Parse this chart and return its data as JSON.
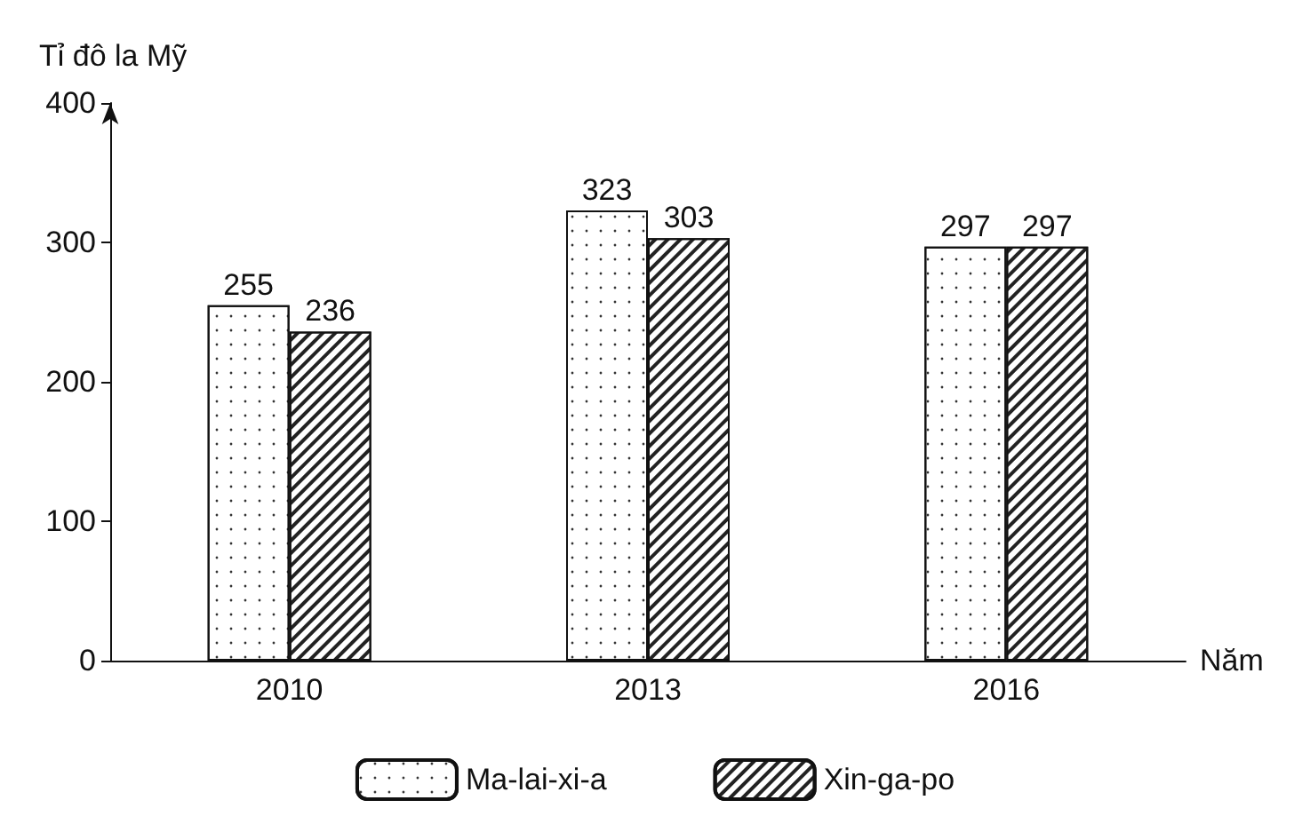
{
  "chart_data": {
    "type": "bar",
    "ylabel": "Tỉ đô la Mỹ",
    "xlabel": "Năm",
    "categories": [
      "2010",
      "2013",
      "2016"
    ],
    "series": [
      {
        "name": "Ma-lai-xi-a",
        "color": "#ffffff",
        "values": [
          255,
          323,
          297
        ]
      },
      {
        "name": "Xin-ga-po",
        "color": "#ffffff",
        "values": [
          236,
          303,
          297
        ]
      }
    ],
    "ylim": [
      0,
      400
    ],
    "yticks": [
      0,
      100,
      200,
      300,
      400
    ],
    "grid": false,
    "legend": "bottom",
    "data_labels": true
  }
}
